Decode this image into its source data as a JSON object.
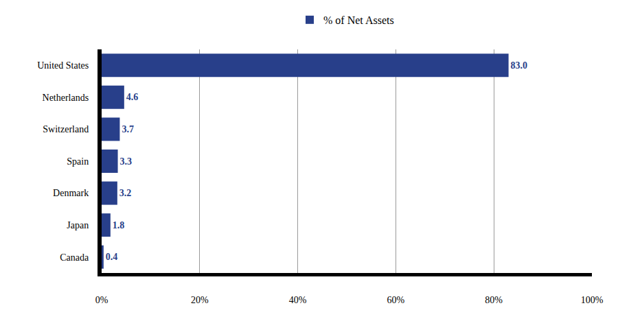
{
  "chart_data": {
    "type": "bar",
    "orientation": "horizontal",
    "categories": [
      "United States",
      "Netherlands",
      "Switzerland",
      "Spain",
      "Denmark",
      "Japan",
      "Canada"
    ],
    "series": [
      {
        "name": "% of Net Assets",
        "color": "#283f8a",
        "values": [
          83.0,
          4.6,
          3.7,
          3.3,
          3.2,
          1.8,
          0.4
        ],
        "value_labels": [
          "83.0",
          "4.6",
          "3.7",
          "3.3",
          "3.2",
          "1.8",
          "0.4"
        ]
      }
    ],
    "xlim": [
      0,
      100
    ],
    "xticks": [
      {
        "value": 0,
        "label": "0%"
      },
      {
        "value": 20,
        "label": "20%"
      },
      {
        "value": 40,
        "label": "40%"
      },
      {
        "value": 60,
        "label": "60%"
      },
      {
        "value": 80,
        "label": "80%"
      },
      {
        "value": 100,
        "label": "100%"
      }
    ],
    "grid": true,
    "legend": "top",
    "data_labels": true
  }
}
